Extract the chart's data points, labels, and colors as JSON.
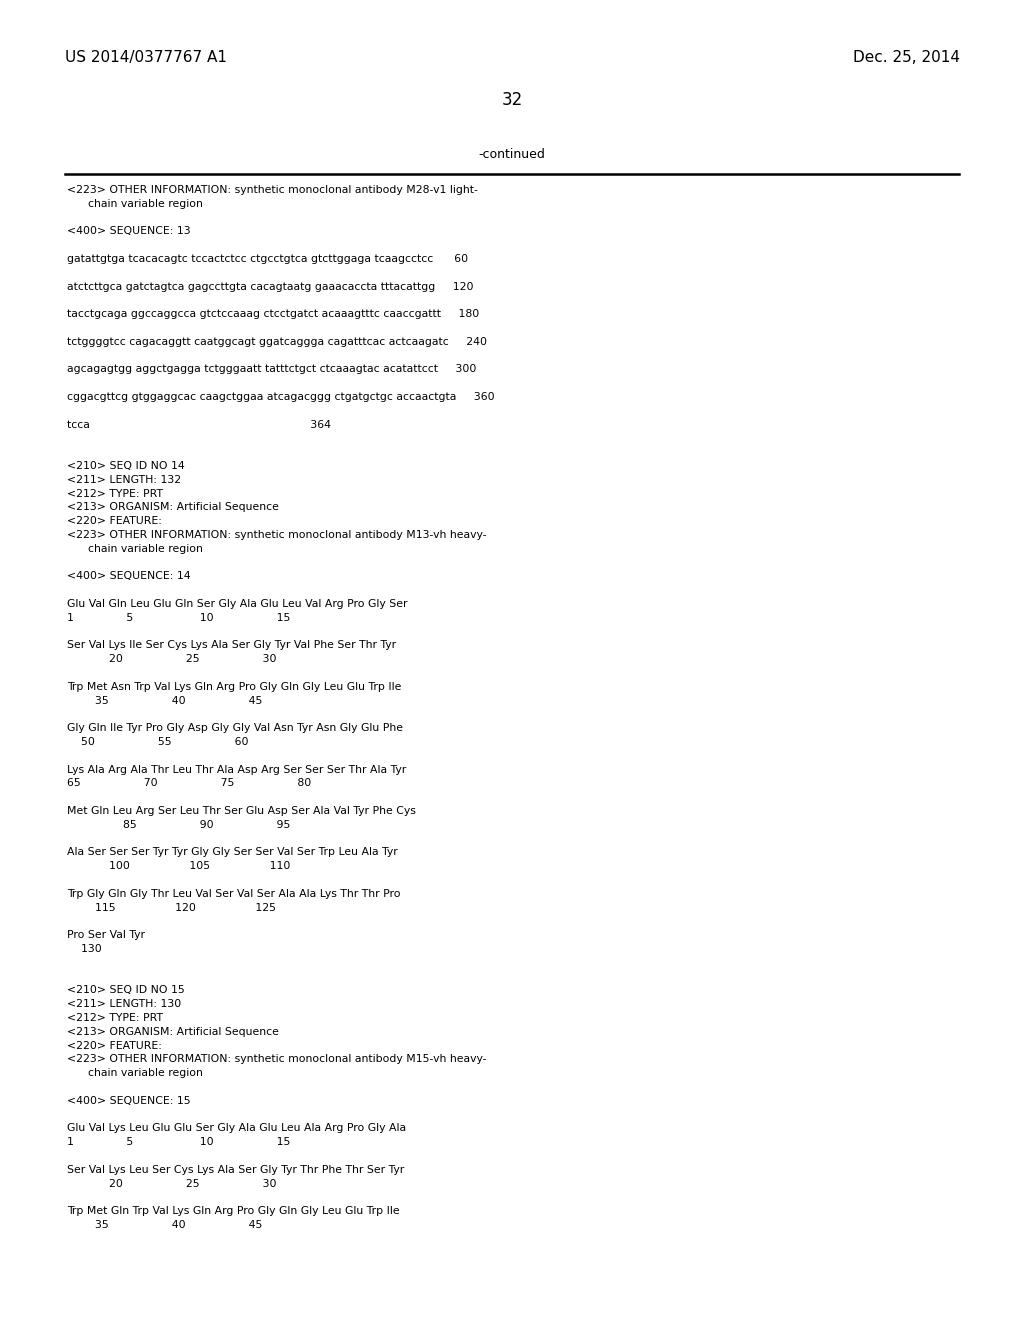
{
  "bg_color": "#ffffff",
  "header_left": "US 2014/0377767 A1",
  "header_right": "Dec. 25, 2014",
  "page_number": "32",
  "continued_text": "-continued",
  "content_lines": [
    {
      "text": "<223> OTHER INFORMATION: synthetic monoclonal antibody M28-v1 light-",
      "bold": false
    },
    {
      "text": "      chain variable region",
      "bold": false
    },
    {
      "text": "",
      "bold": false
    },
    {
      "text": "<400> SEQUENCE: 13",
      "bold": false
    },
    {
      "text": "",
      "bold": false
    },
    {
      "text": "gatattgtga tcacacagtc tccactctcc ctgcctgtca gtcttggaga tcaagcctcc      60",
      "bold": false
    },
    {
      "text": "",
      "bold": false
    },
    {
      "text": "atctcttgca gatctagtca gagccttgta cacagtaatg gaaacaccta tttacattgg     120",
      "bold": false
    },
    {
      "text": "",
      "bold": false
    },
    {
      "text": "tacctgcaga ggccaggcca gtctccaaag ctcctgatct acaaagtttc caaccgattt     180",
      "bold": false
    },
    {
      "text": "",
      "bold": false
    },
    {
      "text": "tctggggtcc cagacaggtt caatggcagt ggatcaggga cagatttcac actcaagatc     240",
      "bold": false
    },
    {
      "text": "",
      "bold": false
    },
    {
      "text": "agcagagtgg aggctgagga tctgggaatt tatttctgct ctcaaagtac acatattcct     300",
      "bold": false
    },
    {
      "text": "",
      "bold": false
    },
    {
      "text": "cggacgttcg gtggaggcac caagctggaa atcagacggg ctgatgctgc accaactgta     360",
      "bold": false
    },
    {
      "text": "",
      "bold": false
    },
    {
      "text": "tcca                                                               364",
      "bold": false
    },
    {
      "text": "",
      "bold": false
    },
    {
      "text": "",
      "bold": false
    },
    {
      "text": "<210> SEQ ID NO 14",
      "bold": false
    },
    {
      "text": "<211> LENGTH: 132",
      "bold": false
    },
    {
      "text": "<212> TYPE: PRT",
      "bold": false
    },
    {
      "text": "<213> ORGANISM: Artificial Sequence",
      "bold": false
    },
    {
      "text": "<220> FEATURE:",
      "bold": false
    },
    {
      "text": "<223> OTHER INFORMATION: synthetic monoclonal antibody M13-vh heavy-",
      "bold": false
    },
    {
      "text": "      chain variable region",
      "bold": false
    },
    {
      "text": "",
      "bold": false
    },
    {
      "text": "<400> SEQUENCE: 14",
      "bold": false
    },
    {
      "text": "",
      "bold": false
    },
    {
      "text": "Glu Val Gln Leu Glu Gln Ser Gly Ala Glu Leu Val Arg Pro Gly Ser",
      "bold": false
    },
    {
      "text": "1               5                   10                  15",
      "bold": false
    },
    {
      "text": "",
      "bold": false
    },
    {
      "text": "Ser Val Lys Ile Ser Cys Lys Ala Ser Gly Tyr Val Phe Ser Thr Tyr",
      "bold": false
    },
    {
      "text": "            20                  25                  30",
      "bold": false
    },
    {
      "text": "",
      "bold": false
    },
    {
      "text": "Trp Met Asn Trp Val Lys Gln Arg Pro Gly Gln Gly Leu Glu Trp Ile",
      "bold": false
    },
    {
      "text": "        35                  40                  45",
      "bold": false
    },
    {
      "text": "",
      "bold": false
    },
    {
      "text": "Gly Gln Ile Tyr Pro Gly Asp Gly Gly Val Asn Tyr Asn Gly Glu Phe",
      "bold": false
    },
    {
      "text": "    50                  55                  60",
      "bold": false
    },
    {
      "text": "",
      "bold": false
    },
    {
      "text": "Lys Ala Arg Ala Thr Leu Thr Ala Asp Arg Ser Ser Ser Thr Ala Tyr",
      "bold": false
    },
    {
      "text": "65                  70                  75                  80",
      "bold": false
    },
    {
      "text": "",
      "bold": false
    },
    {
      "text": "Met Gln Leu Arg Ser Leu Thr Ser Glu Asp Ser Ala Val Tyr Phe Cys",
      "bold": false
    },
    {
      "text": "                85                  90                  95",
      "bold": false
    },
    {
      "text": "",
      "bold": false
    },
    {
      "text": "Ala Ser Ser Ser Tyr Tyr Gly Gly Ser Ser Val Ser Trp Leu Ala Tyr",
      "bold": false
    },
    {
      "text": "            100                 105                 110",
      "bold": false
    },
    {
      "text": "",
      "bold": false
    },
    {
      "text": "Trp Gly Gln Gly Thr Leu Val Ser Val Ser Ala Ala Lys Thr Thr Pro",
      "bold": false
    },
    {
      "text": "        115                 120                 125",
      "bold": false
    },
    {
      "text": "",
      "bold": false
    },
    {
      "text": "Pro Ser Val Tyr",
      "bold": false
    },
    {
      "text": "    130",
      "bold": false
    },
    {
      "text": "",
      "bold": false
    },
    {
      "text": "",
      "bold": false
    },
    {
      "text": "<210> SEQ ID NO 15",
      "bold": false
    },
    {
      "text": "<211> LENGTH: 130",
      "bold": false
    },
    {
      "text": "<212> TYPE: PRT",
      "bold": false
    },
    {
      "text": "<213> ORGANISM: Artificial Sequence",
      "bold": false
    },
    {
      "text": "<220> FEATURE:",
      "bold": false
    },
    {
      "text": "<223> OTHER INFORMATION: synthetic monoclonal antibody M15-vh heavy-",
      "bold": false
    },
    {
      "text": "      chain variable region",
      "bold": false
    },
    {
      "text": "",
      "bold": false
    },
    {
      "text": "<400> SEQUENCE: 15",
      "bold": false
    },
    {
      "text": "",
      "bold": false
    },
    {
      "text": "Glu Val Lys Leu Glu Glu Ser Gly Ala Glu Leu Ala Arg Pro Gly Ala",
      "bold": false
    },
    {
      "text": "1               5                   10                  15",
      "bold": false
    },
    {
      "text": "",
      "bold": false
    },
    {
      "text": "Ser Val Lys Leu Ser Cys Lys Ala Ser Gly Tyr Thr Phe Thr Ser Tyr",
      "bold": false
    },
    {
      "text": "            20                  25                  30",
      "bold": false
    },
    {
      "text": "",
      "bold": false
    },
    {
      "text": "Trp Met Gln Trp Val Lys Gln Arg Pro Gly Gln Gly Leu Glu Trp Ile",
      "bold": false
    },
    {
      "text": "        35                  40                  45",
      "bold": false
    }
  ]
}
